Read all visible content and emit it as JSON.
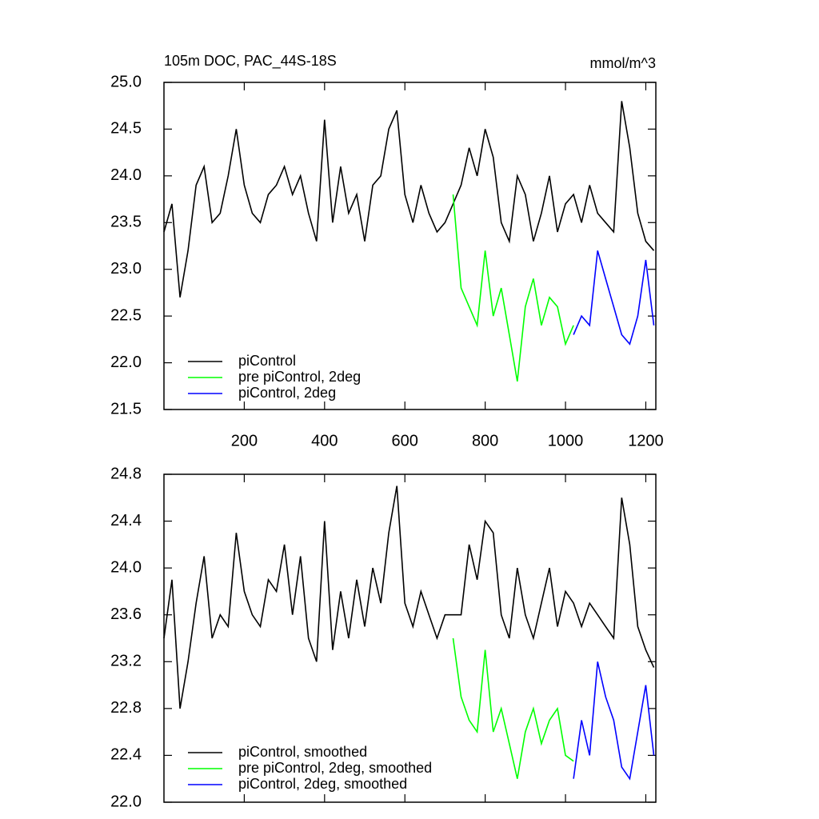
{
  "chart_data": [
    {
      "type": "line",
      "title": "105m DOC, PAC_44S-18S",
      "units": "mmol/m^3",
      "xlim": [
        0,
        1225
      ],
      "xticks": [
        200,
        400,
        600,
        800,
        1000,
        1200
      ],
      "ylim": [
        21.5,
        25.0
      ],
      "yticks": [
        {
          "value": 21.5,
          "label": "21.5"
        },
        {
          "value": 22,
          "label": "22.0"
        },
        {
          "value": 22.5,
          "label": "22.5"
        },
        {
          "value": 23,
          "label": "23.0"
        },
        {
          "value": 23.5,
          "label": "23.5"
        },
        {
          "value": 24,
          "label": "24.0"
        },
        {
          "value": 24.5,
          "label": "24.5"
        },
        {
          "value": 25,
          "label": "25.0"
        }
      ],
      "series": [
        {
          "name": "piControl",
          "color": "#000000",
          "x": [
            0,
            20,
            40,
            60,
            80,
            100,
            120,
            140,
            160,
            180,
            200,
            220,
            240,
            260,
            280,
            300,
            320,
            340,
            360,
            380,
            400,
            420,
            440,
            460,
            480,
            500,
            520,
            540,
            560,
            580,
            600,
            620,
            640,
            660,
            680,
            700,
            720,
            740,
            760,
            780,
            800,
            820,
            840,
            860,
            880,
            900,
            920,
            940,
            960,
            980,
            1000,
            1020,
            1040,
            1060,
            1080,
            1100,
            1120,
            1140,
            1160,
            1180,
            1200,
            1220
          ],
          "values": [
            23.4,
            23.7,
            22.7,
            23.2,
            23.9,
            24.1,
            23.5,
            23.6,
            24.0,
            24.5,
            23.9,
            23.6,
            23.5,
            23.8,
            23.9,
            24.1,
            23.8,
            24.0,
            23.6,
            23.3,
            24.6,
            23.5,
            24.1,
            23.6,
            23.8,
            23.3,
            23.9,
            24.0,
            24.5,
            24.7,
            23.8,
            23.5,
            23.9,
            23.6,
            23.4,
            23.5,
            23.7,
            23.9,
            24.3,
            24.0,
            24.5,
            24.2,
            23.5,
            23.3,
            24.0,
            23.8,
            23.3,
            23.6,
            24.0,
            23.4,
            23.7,
            23.8,
            23.5,
            23.9,
            23.6,
            23.5,
            23.4,
            24.8,
            24.3,
            23.6,
            23.3,
            23.2
          ]
        },
        {
          "name": "pre piControl, 2deg",
          "color": "#00ff00",
          "x": [
            720,
            740,
            760,
            780,
            800,
            820,
            840,
            860,
            880,
            900,
            920,
            940,
            960,
            980,
            1000,
            1020
          ],
          "values": [
            23.8,
            22.8,
            22.6,
            22.4,
            23.2,
            22.5,
            22.8,
            22.3,
            21.8,
            22.6,
            22.9,
            22.4,
            22.7,
            22.6,
            22.2,
            22.4
          ]
        },
        {
          "name": "piControl, 2deg",
          "color": "#0000ff",
          "x": [
            1020,
            1040,
            1060,
            1080,
            1100,
            1120,
            1140,
            1160,
            1180,
            1200,
            1220
          ],
          "values": [
            22.3,
            22.5,
            22.4,
            23.2,
            22.9,
            22.6,
            22.3,
            22.2,
            22.5,
            23.1,
            22.4
          ]
        }
      ]
    },
    {
      "type": "line",
      "xlim": [
        0,
        1225
      ],
      "xticks": [
        200,
        400,
        600,
        800,
        1000,
        1200
      ],
      "ylim": [
        22.0,
        24.8
      ],
      "yticks": [
        {
          "value": 22,
          "label": "22.0"
        },
        22.4,
        22.8,
        23.2,
        23.6,
        {
          "value": 24,
          "label": "24.0"
        },
        24.4,
        24.8
      ],
      "series": [
        {
          "name": "piControl, smoothed",
          "color": "#000000",
          "x": [
            0,
            20,
            40,
            60,
            80,
            100,
            120,
            140,
            160,
            180,
            200,
            220,
            240,
            260,
            280,
            300,
            320,
            340,
            360,
            380,
            400,
            420,
            440,
            460,
            480,
            500,
            520,
            540,
            560,
            580,
            600,
            620,
            640,
            660,
            680,
            700,
            720,
            740,
            760,
            780,
            800,
            820,
            840,
            860,
            880,
            900,
            920,
            940,
            960,
            980,
            1000,
            1020,
            1040,
            1060,
            1080,
            1100,
            1120,
            1140,
            1160,
            1180,
            1200,
            1220
          ],
          "values": [
            23.4,
            23.9,
            22.8,
            23.2,
            23.7,
            24.1,
            23.4,
            23.6,
            23.5,
            24.3,
            23.8,
            23.6,
            23.5,
            23.9,
            23.8,
            24.2,
            23.6,
            24.1,
            23.4,
            23.2,
            24.4,
            23.3,
            23.8,
            23.4,
            23.9,
            23.5,
            24.0,
            23.7,
            24.3,
            24.7,
            23.7,
            23.5,
            23.8,
            23.6,
            23.4,
            23.6,
            23.6,
            23.6,
            24.2,
            23.9,
            24.4,
            24.3,
            23.6,
            23.4,
            24.0,
            23.6,
            23.4,
            23.7,
            24.0,
            23.5,
            23.8,
            23.7,
            23.5,
            23.7,
            23.6,
            23.5,
            23.4,
            24.6,
            24.2,
            23.5,
            23.3,
            23.15
          ]
        },
        {
          "name": "pre piControl, 2deg, smoothed",
          "color": "#00ff00",
          "x": [
            720,
            740,
            760,
            780,
            800,
            820,
            840,
            860,
            880,
            900,
            920,
            940,
            960,
            980,
            1000,
            1020
          ],
          "values": [
            23.4,
            22.9,
            22.7,
            22.6,
            23.3,
            22.6,
            22.8,
            22.5,
            22.2,
            22.6,
            22.8,
            22.5,
            22.7,
            22.8,
            22.4,
            22.35
          ]
        },
        {
          "name": "piControl, 2deg, smoothed",
          "color": "#0000ff",
          "x": [
            1020,
            1040,
            1060,
            1080,
            1100,
            1120,
            1140,
            1160,
            1180,
            1200,
            1220
          ],
          "values": [
            22.2,
            22.7,
            22.4,
            23.2,
            22.9,
            22.7,
            22.3,
            22.2,
            22.6,
            23.0,
            22.4
          ]
        }
      ]
    }
  ]
}
